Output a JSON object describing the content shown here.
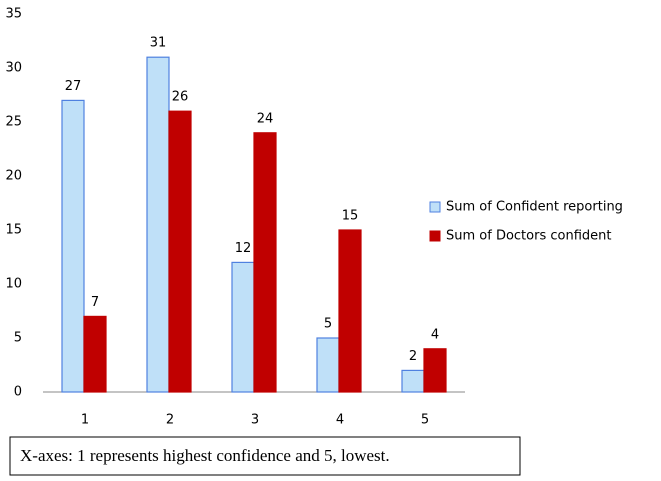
{
  "chart_data": {
    "type": "bar",
    "categories": [
      "1",
      "2",
      "3",
      "4",
      "5"
    ],
    "series": [
      {
        "name": "Sum of Confident reporting",
        "color": "#bfe0f8",
        "values": [
          27,
          31,
          12,
          5,
          2
        ]
      },
      {
        "name": "Sum of Doctors confident",
        "color": "#c00000",
        "values": [
          7,
          26,
          24,
          15,
          4
        ]
      }
    ],
    "ylim": [
      0,
      35
    ],
    "yticks": [
      0,
      5,
      10,
      15,
      20,
      25,
      30,
      35
    ],
    "grid": false,
    "legend": "right",
    "caption": "X-axes: 1 represents highest confidence and 5, lowest."
  }
}
